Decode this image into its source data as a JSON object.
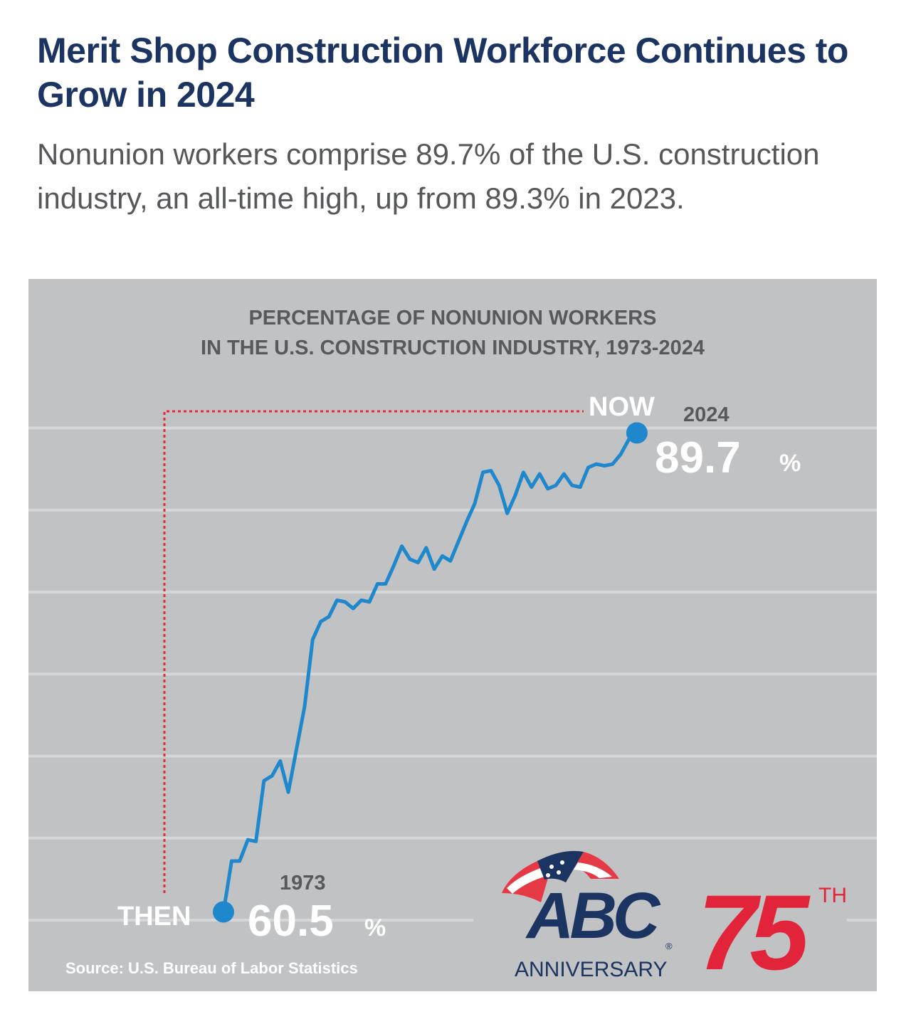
{
  "header": {
    "title": "Merit Shop Construction Workforce Continues to Grow in 2024",
    "subtitle": "Nonunion workers comprise 89.7% of the U.S. construction industry, an all-time high, up from 89.3% in 2023."
  },
  "chart_data": {
    "type": "line",
    "title_line1": "PERCENTAGE OF NONUNION WORKERS",
    "title_line2": "IN THE U.S. CONSTRUCTION INDUSTRY, 1973-2024",
    "xlabel": "",
    "ylabel": "",
    "ylim": [
      60,
      90
    ],
    "grid": true,
    "grid_values": [
      60,
      65,
      70,
      75,
      80,
      85,
      90
    ],
    "line_color": "#1f88cc",
    "x": [
      1973,
      1974,
      1975,
      1976,
      1977,
      1978,
      1979,
      1980,
      1981,
      1982,
      1983,
      1984,
      1985,
      1986,
      1987,
      1988,
      1989,
      1990,
      1991,
      1992,
      1993,
      1994,
      1995,
      1996,
      1997,
      1998,
      1999,
      2000,
      2001,
      2002,
      2003,
      2004,
      2005,
      2006,
      2007,
      2008,
      2009,
      2010,
      2011,
      2012,
      2013,
      2014,
      2015,
      2016,
      2017,
      2018,
      2019,
      2020,
      2021,
      2022,
      2023,
      2024
    ],
    "values": [
      60.5,
      63.6,
      63.6,
      64.9,
      64.8,
      68.5,
      68.8,
      69.7,
      67.8,
      70.4,
      73.0,
      77.1,
      78.2,
      78.5,
      79.5,
      79.4,
      79.0,
      79.5,
      79.4,
      80.5,
      80.5,
      81.6,
      82.8,
      82.0,
      81.8,
      82.7,
      81.4,
      82.2,
      81.9,
      83.1,
      84.3,
      85.4,
      87.3,
      87.4,
      86.5,
      84.8,
      85.9,
      87.3,
      86.4,
      87.2,
      86.3,
      86.5,
      87.2,
      86.5,
      86.4,
      87.6,
      87.8,
      87.7,
      87.8,
      88.4,
      89.3,
      89.7
    ],
    "annotations": {
      "start_label": "THEN",
      "start_year": "1973",
      "start_value": "60.5",
      "end_label": "NOW",
      "end_year": "2024",
      "end_value": "89.7",
      "percent_sign": "%",
      "guide_color": "#e8283a"
    },
    "source": "Source: U.S. Bureau of Labor Statistics"
  },
  "logo": {
    "name": "ABC",
    "registered": "®",
    "number": "75",
    "suffix": "TH",
    "word": "ANNIVERSARY",
    "navy": "#1b3461",
    "red": "#e2243a"
  }
}
